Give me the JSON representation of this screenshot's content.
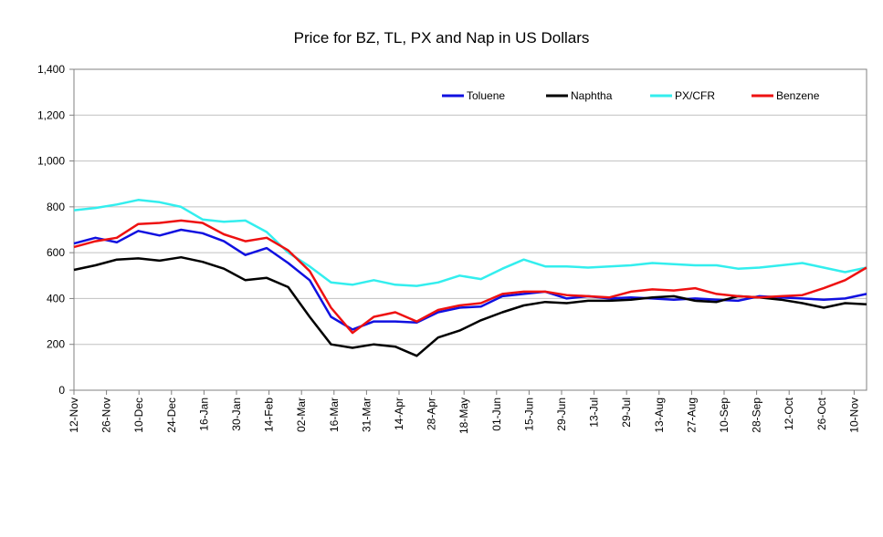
{
  "chart_data": {
    "type": "line",
    "title": "Price for BZ, TL, PX and Nap in US Dollars",
    "xlabel": "",
    "ylabel": "",
    "ylim": [
      0,
      1400
    ],
    "yticks": [
      "0",
      "200",
      "400",
      "600",
      "800",
      "1,000",
      "1,200",
      "1,400"
    ],
    "grid": "horizontal",
    "legend_position": "top-right",
    "x_tick_labels": [
      "12-Nov",
      "26-Nov",
      "10-Dec",
      "24-Dec",
      "16-Jan",
      "30-Jan",
      "14-Feb",
      "02-Mar",
      "16-Mar",
      "31-Mar",
      "14-Apr",
      "28-Apr",
      "18-May",
      "01-Jun",
      "15-Jun",
      "29-Jun",
      "13-Jul",
      "29-Jul",
      "13-Aug",
      "27-Aug",
      "10-Sep",
      "28-Sep",
      "12-Oct",
      "26-Oct",
      "10-Nov"
    ],
    "series": [
      {
        "name": "Toluene",
        "color": "#1010e0",
        "values": [
          640,
          665,
          645,
          695,
          675,
          700,
          685,
          650,
          590,
          620,
          555,
          480,
          320,
          265,
          300,
          300,
          295,
          340,
          360,
          365,
          410,
          420,
          430,
          400,
          410,
          400,
          405,
          400,
          395,
          400,
          395,
          390,
          410,
          405,
          400,
          395,
          400,
          420
        ]
      },
      {
        "name": "Naphtha",
        "color": "#000000",
        "values": [
          525,
          545,
          570,
          575,
          565,
          580,
          560,
          530,
          480,
          490,
          450,
          320,
          200,
          185,
          200,
          190,
          150,
          230,
          260,
          305,
          340,
          370,
          385,
          380,
          390,
          390,
          395,
          405,
          410,
          390,
          385,
          410,
          405,
          395,
          380,
          360,
          380,
          375
        ]
      },
      {
        "name": "PX/CFR",
        "color": "#33eeee",
        "values": [
          785,
          795,
          810,
          830,
          820,
          800,
          745,
          735,
          740,
          690,
          600,
          540,
          470,
          460,
          480,
          460,
          455,
          470,
          500,
          485,
          530,
          570,
          540,
          540,
          535,
          540,
          545,
          555,
          550,
          545,
          545,
          530,
          535,
          545,
          555,
          535,
          515,
          535
        ]
      },
      {
        "name": "Benzene",
        "color": "#ee1111",
        "values": [
          625,
          650,
          665,
          725,
          730,
          740,
          730,
          680,
          650,
          665,
          610,
          520,
          360,
          250,
          320,
          340,
          300,
          350,
          370,
          380,
          420,
          430,
          430,
          415,
          410,
          405,
          430,
          440,
          435,
          445,
          420,
          410,
          405,
          410,
          415,
          445,
          480,
          535
        ]
      }
    ]
  }
}
